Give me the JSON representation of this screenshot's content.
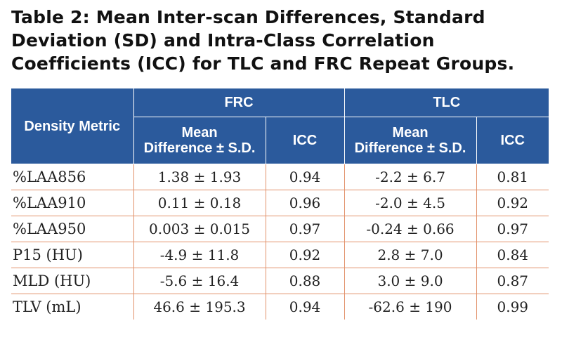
{
  "caption": "Table 2: Mean Inter-scan Differences, Standard Deviation (SD) and Intra-Class Correlation Coefficients (ICC) for TLC and FRC Repeat Groups.",
  "header": {
    "metric": "Density Metric",
    "groups": [
      "FRC",
      "TLC"
    ],
    "mean_diff_line1": "Mean",
    "mean_diff_line2": "Difference ± S.D.",
    "icc": "ICC"
  },
  "rows": [
    {
      "metric": "%LAA856",
      "frc_mean": "1.38 ± 1.93",
      "frc_icc": "0.94",
      "tlc_mean": "-2.2 ± 6.7",
      "tlc_icc": "0.81"
    },
    {
      "metric": "%LAA910",
      "frc_mean": "0.11 ± 0.18",
      "frc_icc": "0.96",
      "tlc_mean": "-2.0 ± 4.5",
      "tlc_icc": "0.92"
    },
    {
      "metric": "%LAA950",
      "frc_mean": "0.003 ± 0.015",
      "frc_icc": "0.97",
      "tlc_mean": "-0.24 ± 0.66",
      "tlc_icc": "0.97"
    },
    {
      "metric": "P15 (HU)",
      "frc_mean": "-4.9 ± 11.8",
      "frc_icc": "0.92",
      "tlc_mean": "2.8 ± 7.0",
      "tlc_icc": "0.84"
    },
    {
      "metric": "MLD (HU)",
      "frc_mean": "-5.6 ± 16.4",
      "frc_icc": "0.88",
      "tlc_mean": "3.0 ± 9.0",
      "tlc_icc": "0.87"
    },
    {
      "metric": "TLV (mL)",
      "frc_mean": "46.6 ± 195.3",
      "frc_icc": "0.94",
      "tlc_mean": "-62.6 ± 190",
      "tlc_icc": "0.99"
    }
  ]
}
